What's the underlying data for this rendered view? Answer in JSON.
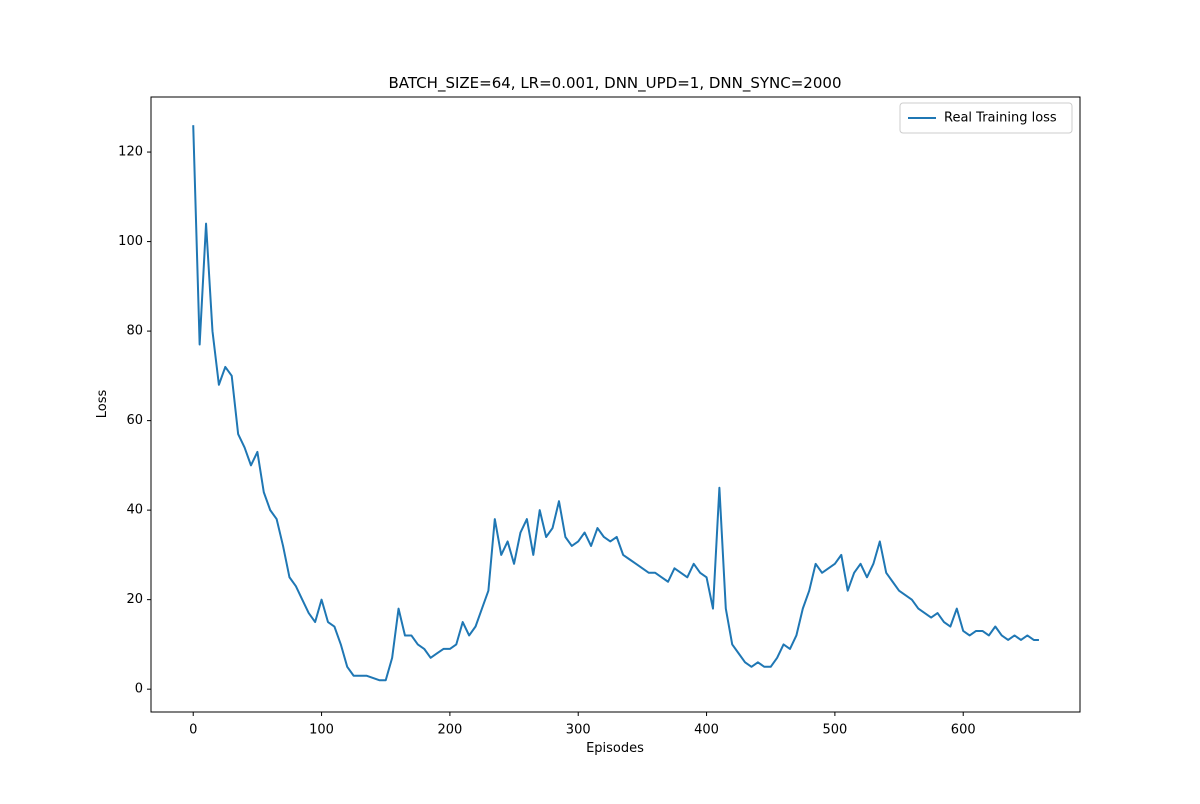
{
  "chart_data": {
    "type": "line",
    "title": "BATCH_SIZE=64, LR=0.001, DNN_UPD=1, DNN_SYNC=2000",
    "xlabel": "Episodes",
    "ylabel": "Loss",
    "x": [
      0,
      5,
      10,
      15,
      20,
      25,
      30,
      35,
      40,
      45,
      50,
      55,
      60,
      65,
      70,
      75,
      80,
      85,
      90,
      95,
      100,
      105,
      110,
      115,
      120,
      125,
      130,
      135,
      140,
      145,
      150,
      155,
      160,
      165,
      170,
      175,
      180,
      185,
      190,
      195,
      200,
      205,
      210,
      215,
      220,
      225,
      230,
      235,
      240,
      245,
      250,
      255,
      260,
      265,
      270,
      275,
      280,
      285,
      290,
      295,
      300,
      305,
      310,
      315,
      320,
      325,
      330,
      335,
      340,
      345,
      350,
      355,
      360,
      365,
      370,
      375,
      380,
      385,
      390,
      395,
      400,
      405,
      410,
      415,
      420,
      425,
      430,
      435,
      440,
      445,
      450,
      455,
      460,
      465,
      470,
      475,
      480,
      485,
      490,
      495,
      500,
      505,
      510,
      515,
      520,
      525,
      530,
      535,
      540,
      545,
      550,
      555,
      560,
      565,
      570,
      575,
      580,
      585,
      590,
      595,
      600,
      605,
      610,
      615,
      620,
      625,
      630,
      635,
      640,
      645,
      650,
      655,
      659
    ],
    "series": [
      {
        "name": "Real Training loss",
        "color": "#1f77b4",
        "values": [
          126,
          77,
          104,
          80,
          68,
          72,
          70,
          57,
          54,
          50,
          53,
          44,
          40,
          38,
          32,
          25,
          23,
          20,
          17,
          15,
          20,
          15,
          14,
          10,
          5,
          3,
          3,
          3,
          2.5,
          2,
          2,
          7,
          18,
          12,
          12,
          10,
          9,
          7,
          8,
          9,
          9,
          10,
          15,
          12,
          14,
          18,
          22,
          38,
          30,
          33,
          28,
          35,
          38,
          30,
          40,
          34,
          36,
          42,
          34,
          32,
          33,
          35,
          32,
          36,
          34,
          33,
          34,
          30,
          29,
          28,
          27,
          26,
          26,
          25,
          24,
          27,
          26,
          25,
          28,
          26,
          25,
          18,
          45,
          18,
          10,
          8,
          6,
          5,
          6,
          5,
          5,
          7,
          10,
          9,
          12,
          18,
          22,
          28,
          26,
          27,
          28,
          30,
          22,
          26,
          28,
          25,
          28,
          33,
          26,
          24,
          22,
          21,
          20,
          18,
          17,
          16,
          17,
          15,
          14,
          18,
          13,
          12,
          13,
          13,
          12,
          14,
          12,
          11,
          12,
          11,
          12,
          11,
          11
        ]
      }
    ],
    "xlim": [
      -32.9,
      691
    ],
    "ylim": [
      -5.1,
      132.3
    ],
    "xticks": [
      0,
      100,
      200,
      300,
      400,
      500,
      600
    ],
    "yticks": [
      0,
      20,
      40,
      60,
      80,
      100,
      120
    ],
    "legend": "upper right"
  }
}
